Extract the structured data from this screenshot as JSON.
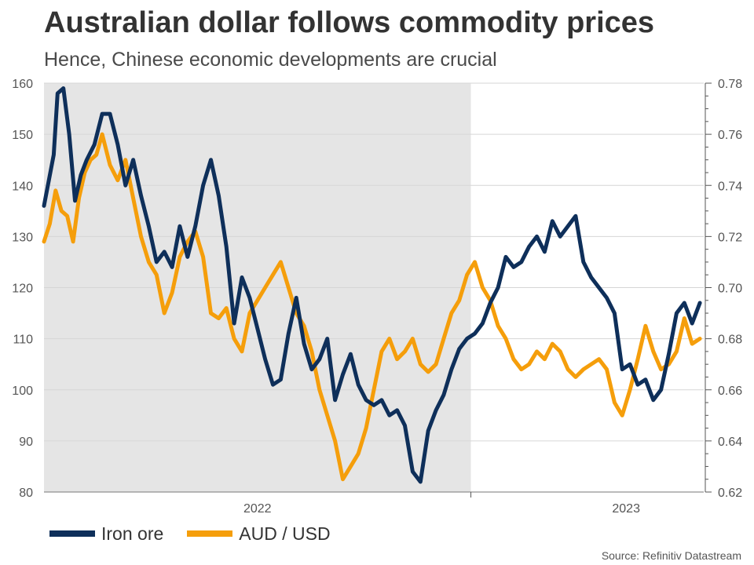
{
  "chart_data": {
    "type": "line",
    "title": "Australian dollar follows commodity prices",
    "subtitle": "Hence, Chinese economic developments are crucial",
    "x_ticks": [
      "2022",
      "2023"
    ],
    "x_range": [
      2021.9,
      2023.6
    ],
    "left_axis": {
      "name": "Iron ore",
      "ylim": [
        80,
        160
      ],
      "ticks": [
        80,
        90,
        100,
        110,
        120,
        130,
        140,
        150,
        160
      ]
    },
    "right_axis": {
      "name": "AUD / USD",
      "ylim": [
        0.62,
        0.78
      ],
      "ticks": [
        "0.62",
        "0.64",
        "0.66",
        "0.68",
        "0.70",
        "0.72",
        "0.74",
        "0.76",
        "0.78"
      ]
    },
    "shaded_region": [
      2021.9,
      2023.0
    ],
    "series": [
      {
        "name": "Iron ore",
        "axis": "left",
        "color": "#0e2f5a",
        "x": [
          2021.9,
          2021.925,
          2021.935,
          2021.95,
          2021.965,
          2021.98,
          2021.995,
          2022.01,
          2022.03,
          2022.05,
          2022.07,
          2022.09,
          2022.11,
          2022.13,
          2022.15,
          2022.17,
          2022.19,
          2022.21,
          2022.23,
          2022.25,
          2022.27,
          2022.29,
          2022.31,
          2022.33,
          2022.35,
          2022.37,
          2022.39,
          2022.41,
          2022.43,
          2022.45,
          2022.47,
          2022.49,
          2022.51,
          2022.53,
          2022.55,
          2022.57,
          2022.59,
          2022.61,
          2022.63,
          2022.65,
          2022.67,
          2022.69,
          2022.71,
          2022.73,
          2022.75,
          2022.77,
          2022.79,
          2022.81,
          2022.83,
          2022.85,
          2022.87,
          2022.89,
          2022.91,
          2022.93,
          2022.95,
          2022.97,
          2022.99,
          2023.01,
          2023.03,
          2023.05,
          2023.07,
          2023.09,
          2023.11,
          2023.13,
          2023.15,
          2023.17,
          2023.19,
          2023.21,
          2023.23,
          2023.25,
          2023.27,
          2023.29,
          2023.31,
          2023.33,
          2023.35,
          2023.37,
          2023.39,
          2023.41,
          2023.43,
          2023.45,
          2023.47,
          2023.49,
          2023.51,
          2023.53,
          2023.55,
          2023.57,
          2023.59
        ],
        "values": [
          136,
          146,
          158,
          159,
          150,
          137,
          142,
          145,
          148,
          154,
          154,
          148,
          140,
          145,
          138,
          132,
          125,
          127,
          124,
          132,
          126,
          132,
          140,
          145,
          138,
          128,
          113,
          122,
          118,
          112,
          106,
          101,
          102,
          111,
          118,
          109,
          104,
          106,
          110,
          98,
          103,
          107,
          101,
          98,
          97,
          98,
          95,
          96,
          93,
          84,
          82,
          92,
          96,
          99,
          104,
          108,
          110,
          111,
          113,
          117,
          120,
          126,
          124,
          125,
          128,
          130,
          127,
          133,
          130,
          132,
          134,
          125,
          122,
          120,
          118,
          115,
          104,
          105,
          101,
          102,
          98,
          100,
          107,
          115,
          117,
          113,
          117
        ]
      },
      {
        "name": "AUD / USD",
        "axis": "right",
        "color": "#f59e0b",
        "x": [
          2021.9,
          2021.915,
          2021.93,
          2021.945,
          2021.96,
          2021.975,
          2021.99,
          2022.005,
          2022.02,
          2022.035,
          2022.05,
          2022.07,
          2022.09,
          2022.11,
          2022.13,
          2022.15,
          2022.17,
          2022.19,
          2022.21,
          2022.23,
          2022.25,
          2022.27,
          2022.29,
          2022.31,
          2022.33,
          2022.35,
          2022.37,
          2022.39,
          2022.41,
          2022.43,
          2022.45,
          2022.47,
          2022.49,
          2022.51,
          2022.53,
          2022.55,
          2022.57,
          2022.59,
          2022.61,
          2022.63,
          2022.65,
          2022.67,
          2022.69,
          2022.71,
          2022.73,
          2022.75,
          2022.77,
          2022.79,
          2022.81,
          2022.83,
          2022.85,
          2022.87,
          2022.89,
          2022.91,
          2022.93,
          2022.95,
          2022.97,
          2022.99,
          2023.01,
          2023.03,
          2023.05,
          2023.07,
          2023.09,
          2023.11,
          2023.13,
          2023.15,
          2023.17,
          2023.19,
          2023.21,
          2023.23,
          2023.25,
          2023.27,
          2023.29,
          2023.31,
          2023.33,
          2023.35,
          2023.37,
          2023.39,
          2023.41,
          2023.43,
          2023.45,
          2023.47,
          2023.49,
          2023.51,
          2023.53,
          2023.55,
          2023.57,
          2023.59
        ],
        "values": [
          0.718,
          0.725,
          0.738,
          0.73,
          0.728,
          0.718,
          0.735,
          0.745,
          0.75,
          0.752,
          0.76,
          0.748,
          0.742,
          0.75,
          0.735,
          0.72,
          0.71,
          0.705,
          0.69,
          0.698,
          0.712,
          0.718,
          0.722,
          0.712,
          0.69,
          0.688,
          0.692,
          0.68,
          0.675,
          0.69,
          0.695,
          0.7,
          0.705,
          0.71,
          0.7,
          0.69,
          0.685,
          0.675,
          0.66,
          0.65,
          0.64,
          0.625,
          0.63,
          0.635,
          0.645,
          0.66,
          0.675,
          0.68,
          0.672,
          0.675,
          0.68,
          0.67,
          0.667,
          0.67,
          0.68,
          0.69,
          0.695,
          0.705,
          0.71,
          0.7,
          0.695,
          0.685,
          0.68,
          0.672,
          0.668,
          0.67,
          0.675,
          0.672,
          0.678,
          0.675,
          0.668,
          0.665,
          0.668,
          0.67,
          0.672,
          0.668,
          0.655,
          0.65,
          0.66,
          0.672,
          0.685,
          0.675,
          0.668,
          0.67,
          0.675,
          0.688,
          0.678,
          0.68
        ]
      }
    ]
  },
  "legend": {
    "iron_ore": "Iron ore",
    "aud_usd": "AUD / USD"
  },
  "source": "Source: Refinitiv Datastream",
  "colors": {
    "iron_ore": "#0e2f5a",
    "aud_usd": "#f59e0b",
    "shade": "#e5e5e5",
    "grid": "#d6d6d6"
  }
}
